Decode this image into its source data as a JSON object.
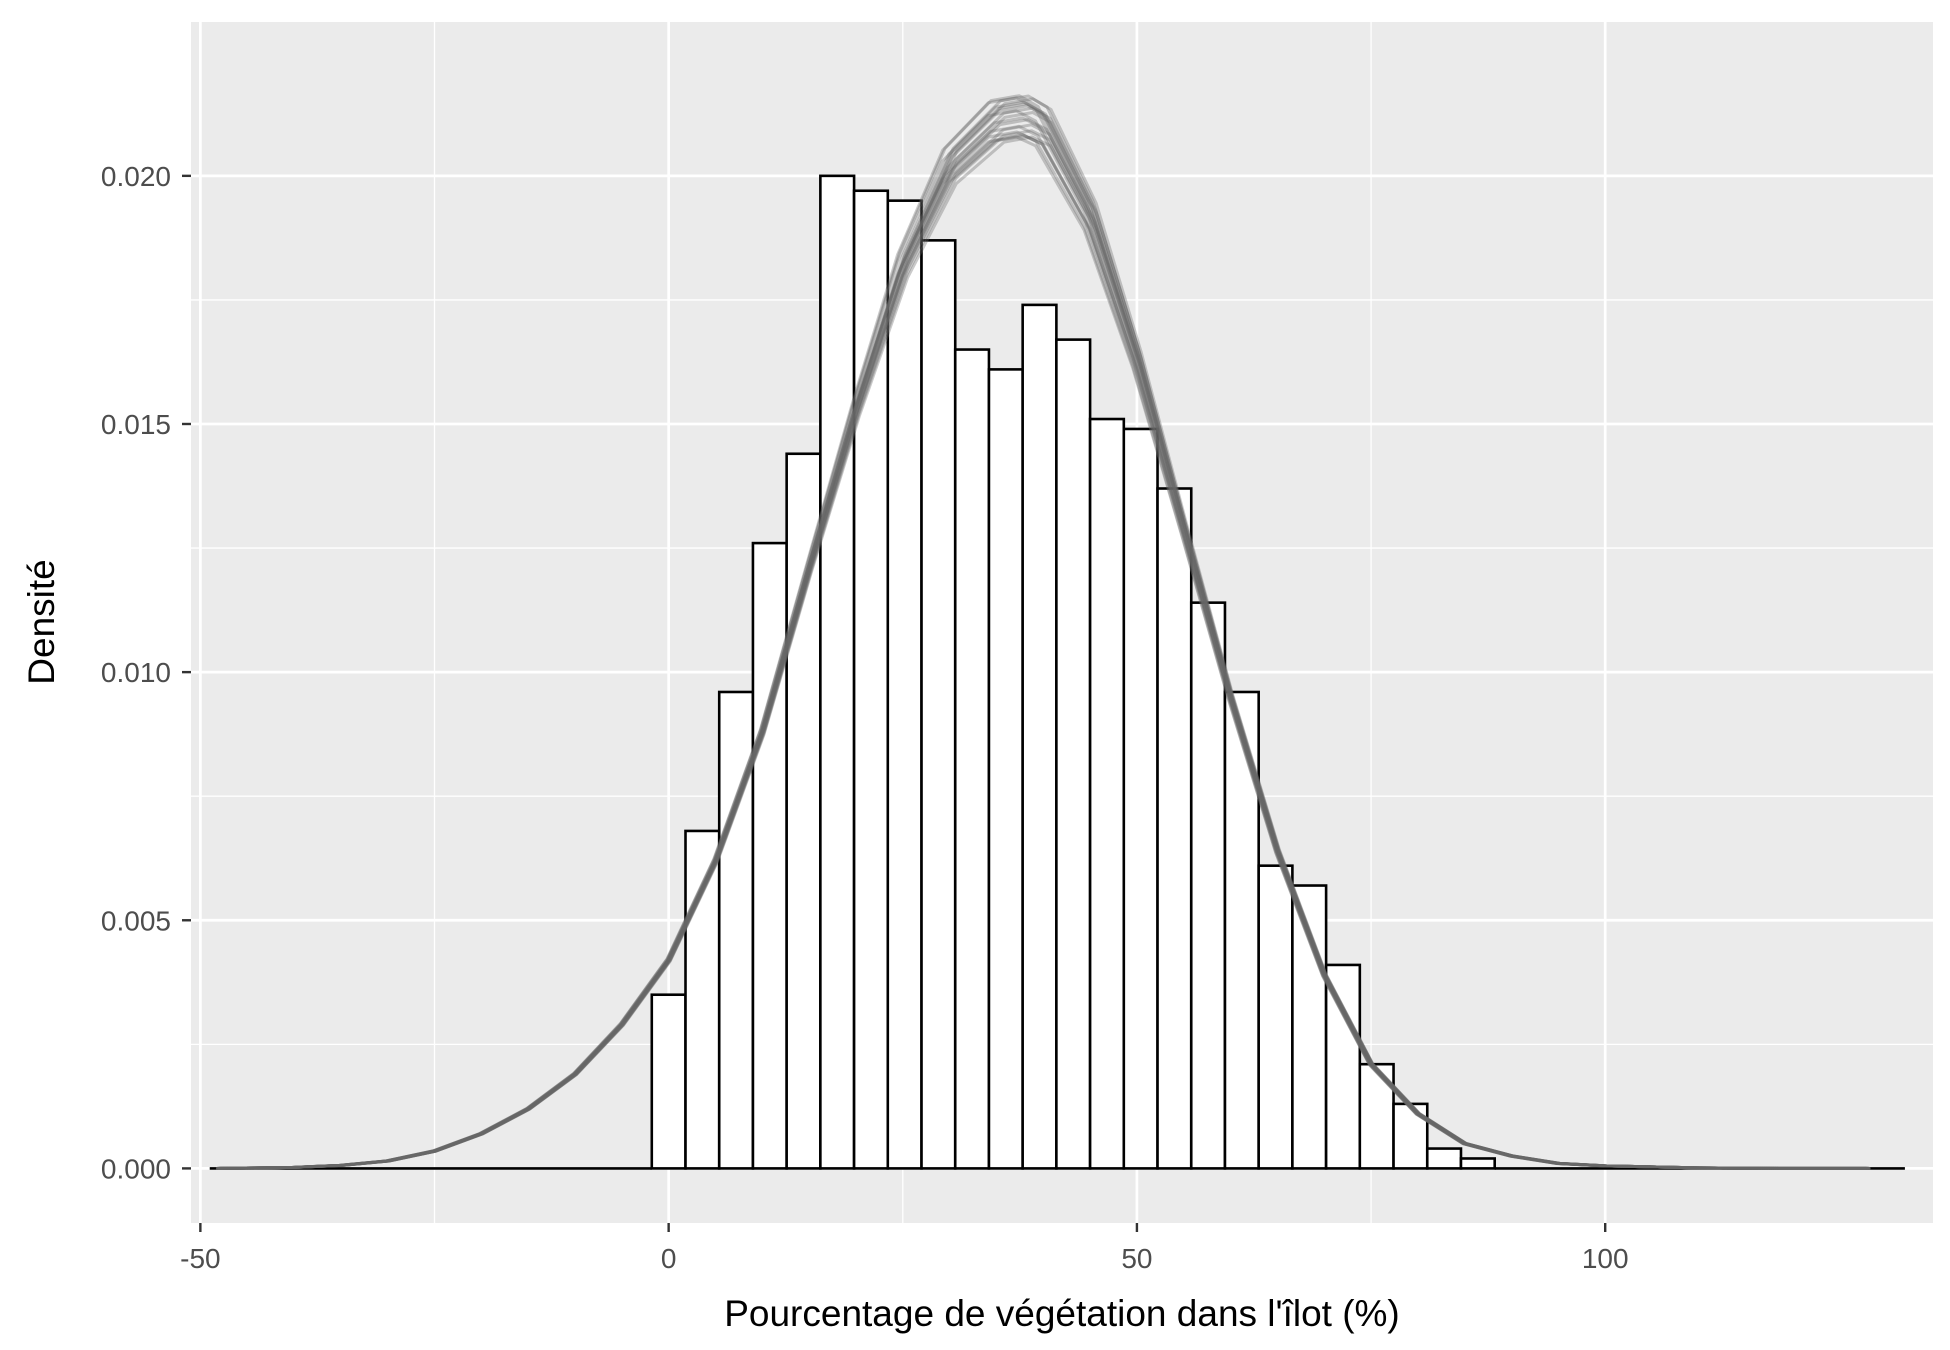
{
  "chart_data": {
    "type": "histogram",
    "title": "",
    "xlabel": "Pourcentage de végétation dans l'îlot (%)",
    "ylabel": "Densité",
    "xlim": [
      -51,
      135
    ],
    "ylim": [
      -0.0011,
      0.0231
    ],
    "x_ticks": [
      {
        "value": -50,
        "label": "-50"
      },
      {
        "value": 0,
        "label": "0"
      },
      {
        "value": 50,
        "label": "50"
      },
      {
        "value": 100,
        "label": "100"
      }
    ],
    "y_ticks": [
      {
        "value": 0.0,
        "label": "0.000"
      },
      {
        "value": 0.005,
        "label": "0.005"
      },
      {
        "value": 0.01,
        "label": "0.010"
      },
      {
        "value": 0.015,
        "label": "0.015"
      },
      {
        "value": 0.02,
        "label": "0.020"
      }
    ],
    "grid": true,
    "background": "#ebebeb",
    "bar_fill": "#ffffff",
    "bar_outline": "#000000",
    "density_color": "#666666",
    "density_replicates": 20,
    "bars": {
      "bin_width": 3.6,
      "bin_start": -1.8,
      "values": [
        0.0035,
        0.0068,
        0.0096,
        0.0126,
        0.0144,
        0.02,
        0.0197,
        0.0195,
        0.0187,
        0.0165,
        0.0161,
        0.0174,
        0.0167,
        0.0151,
        0.0149,
        0.0137,
        0.0114,
        0.0096,
        0.0061,
        0.0057,
        0.0041,
        0.0021,
        0.0013,
        0.0004,
        0.0002
      ],
      "tail_baseline_range": [
        [
          -49,
          -1.8
        ],
        [
          88.2,
          132
        ]
      ]
    },
    "density_curve": {
      "x": [
        -48,
        -40,
        -35,
        -30,
        -25,
        -20,
        -15,
        -10,
        -5,
        0,
        5,
        10,
        15,
        20,
        25,
        30,
        35,
        38,
        40,
        45,
        50,
        55,
        60,
        65,
        70,
        75,
        80,
        85,
        90,
        95,
        100,
        110,
        120,
        128
      ],
      "y": [
        0.0,
        2e-05,
        6e-05,
        0.00015,
        0.00035,
        0.0007,
        0.0012,
        0.0019,
        0.0029,
        0.0042,
        0.0062,
        0.0088,
        0.0121,
        0.0153,
        0.0182,
        0.0202,
        0.0211,
        0.0212,
        0.021,
        0.0192,
        0.0163,
        0.0129,
        0.0095,
        0.0064,
        0.0039,
        0.0021,
        0.0011,
        0.0005,
        0.00025,
        0.0001,
        5e-05,
        1e-05,
        0.0,
        0.0
      ]
    }
  }
}
